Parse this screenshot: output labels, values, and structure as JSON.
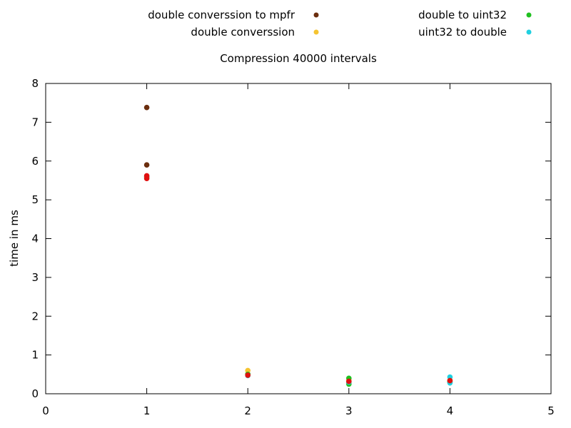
{
  "chart_data": {
    "type": "scatter",
    "title": "Compression 40000 intervals",
    "xlabel": "",
    "ylabel": "time in ms",
    "xlim": [
      0,
      5
    ],
    "ylim": [
      0,
      8
    ],
    "xticks": [
      "0",
      "1",
      "2",
      "3",
      "4",
      "5"
    ],
    "yticks": [
      "0",
      "1",
      "2",
      "3",
      "4",
      "5",
      "6",
      "7",
      "8"
    ],
    "grid": false,
    "legend_position": "top",
    "series": [
      {
        "name": "double converssion to mpfr",
        "color": "#6b2e0e",
        "points": [
          [
            1,
            7.38
          ],
          [
            1,
            5.9
          ],
          [
            2,
            0.5
          ],
          [
            3,
            0.3
          ],
          [
            4,
            0.3
          ]
        ]
      },
      {
        "name": "double converssion",
        "color": "#f5c430",
        "points": [
          [
            1,
            5.6
          ],
          [
            2,
            0.6
          ],
          [
            3,
            0.35
          ],
          [
            4,
            0.35
          ]
        ]
      },
      {
        "name": "double to uint32",
        "color": "#20c020",
        "points": [
          [
            1,
            5.58
          ],
          [
            2,
            0.5
          ],
          [
            3,
            0.25
          ],
          [
            3,
            0.4
          ],
          [
            4,
            0.32
          ]
        ]
      },
      {
        "name": "uint32 to double",
        "color": "#20d0e0",
        "points": [
          [
            1,
            5.6
          ],
          [
            2,
            0.47
          ],
          [
            3,
            0.3
          ],
          [
            4,
            0.28
          ],
          [
            4,
            0.43
          ]
        ]
      },
      {
        "name": "",
        "color": "#e01010",
        "points": [
          [
            1,
            5.55
          ],
          [
            1,
            5.62
          ],
          [
            2,
            0.48
          ],
          [
            3,
            0.32
          ],
          [
            4,
            0.34
          ]
        ]
      }
    ]
  }
}
